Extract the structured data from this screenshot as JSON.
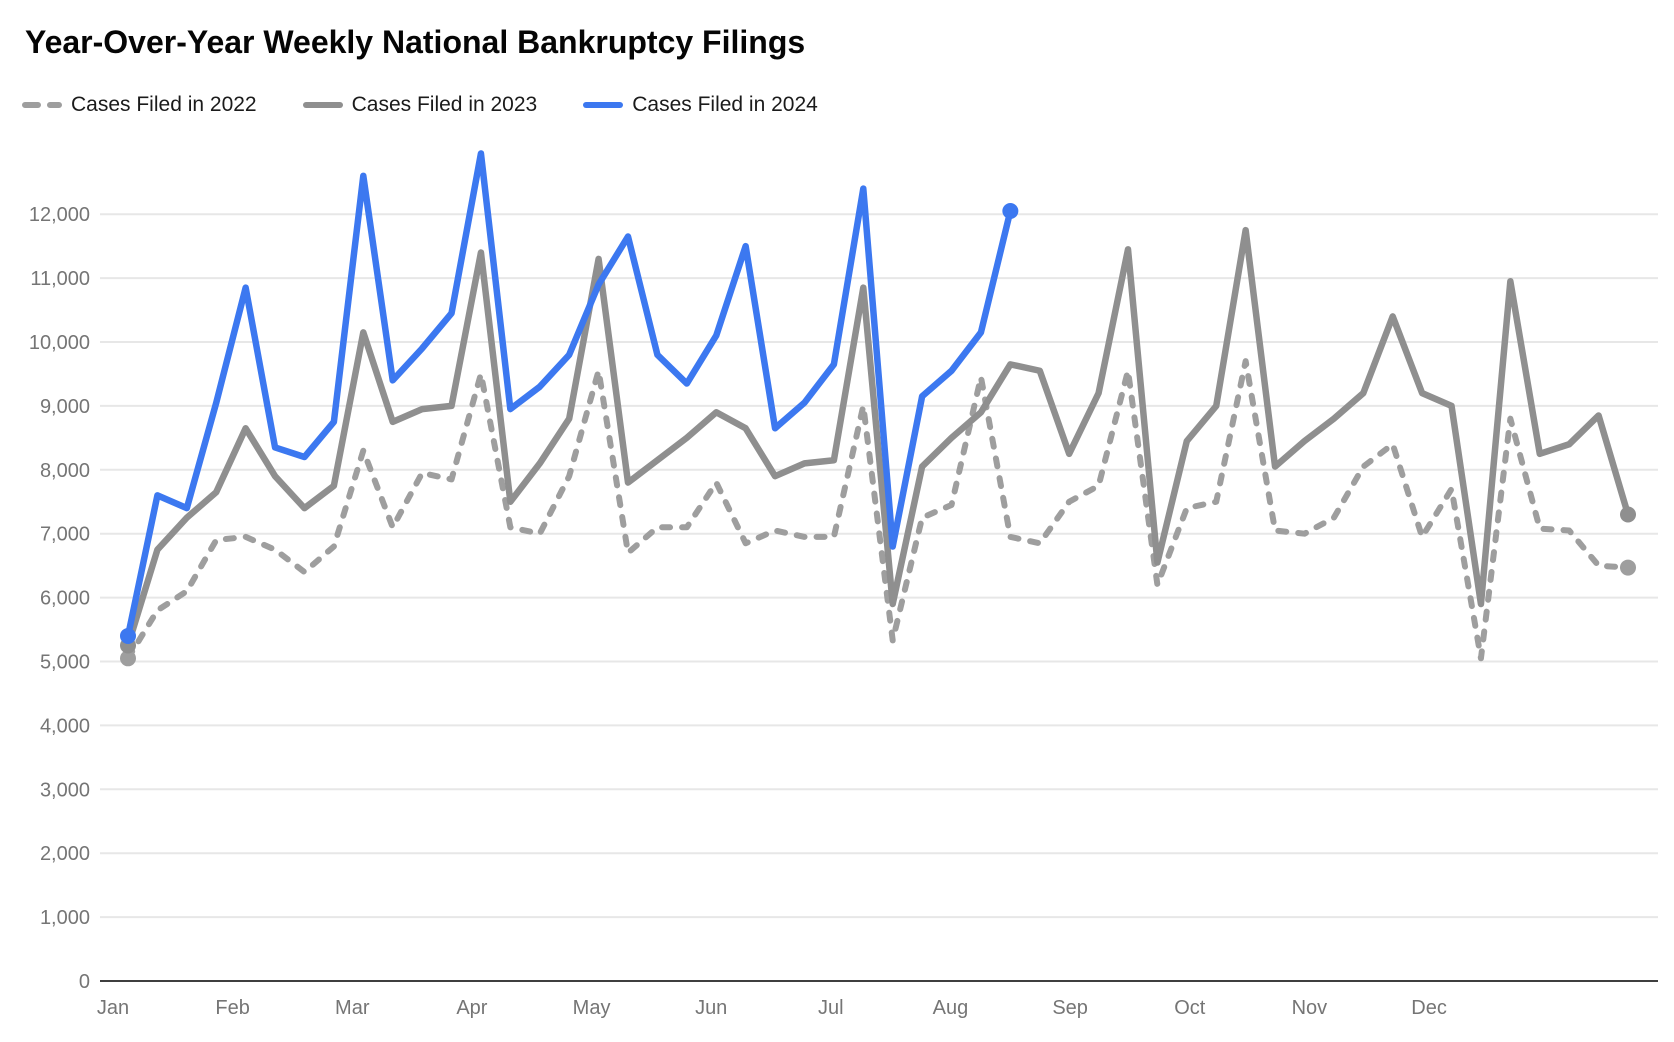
{
  "title": "Year-Over-Year Weekly National Bankruptcy Filings",
  "colors": {
    "series2022": "#9e9e9e",
    "series2023": "#8f8f8f",
    "series2024": "#3c78f0",
    "gridline": "#e7e7e7",
    "axis_baseline": "#3f3f3f",
    "tick_text": "#757575",
    "title_text": "#050505",
    "legend_text": "#1b1b1b"
  },
  "legend": [
    {
      "label": "Cases Filed in 2022",
      "style": "dashed",
      "color": "#9e9e9e"
    },
    {
      "label": "Cases Filed in 2023",
      "style": "solid",
      "color": "#8f8f8f"
    },
    {
      "label": "Cases Filed in 2024",
      "style": "solid",
      "color": "#3c78f0"
    }
  ],
  "chart_data": {
    "type": "line",
    "title": "Year-Over-Year Weekly National Bankruptcy Filings",
    "xlabel": "",
    "ylabel": "",
    "x_unit": "week (52 weekly points per year; 2024 ends at week 31)",
    "grid": true,
    "legend_position": "top-left",
    "ylim": [
      0,
      13100
    ],
    "ytick_labels": [
      "0",
      "1,000",
      "2,000",
      "3,000",
      "4,000",
      "5,000",
      "6,000",
      "7,000",
      "8,000",
      "9,000",
      "10,000",
      "11,000",
      "12,000"
    ],
    "categories_months": [
      "Jan",
      "Feb",
      "Mar",
      "Apr",
      "May",
      "Jun",
      "Jul",
      "Aug",
      "Sep",
      "Oct",
      "Nov",
      "Dec"
    ],
    "series": [
      {
        "name": "Cases Filed in 2022",
        "color": "#9e9e9e",
        "dashed": true,
        "endpoint_dots": true,
        "values": [
          5050,
          5800,
          6100,
          6900,
          6950,
          6750,
          6400,
          6800,
          8300,
          7100,
          7950,
          7850,
          9500,
          7100,
          7000,
          7900,
          9550,
          6700,
          7100,
          7100,
          7800,
          6850,
          7050,
          6950,
          6950,
          9000,
          5330,
          7250,
          7450,
          9450,
          6950,
          6850,
          7500,
          7750,
          9550,
          6200,
          7400,
          7500,
          9700,
          7050,
          7000,
          7250,
          8050,
          8400,
          6950,
          7700,
          5050,
          8800,
          7080,
          7050,
          6500,
          6470
        ]
      },
      {
        "name": "Cases Filed in 2023",
        "color": "#8f8f8f",
        "dashed": false,
        "endpoint_dots": true,
        "values": [
          5250,
          6750,
          7250,
          7650,
          8650,
          7900,
          7400,
          7750,
          10150,
          8750,
          8950,
          9000,
          11400,
          7500,
          8100,
          8800,
          11300,
          7800,
          8150,
          8500,
          8900,
          8650,
          7900,
          8100,
          8150,
          10850,
          5900,
          8050,
          8500,
          8900,
          9650,
          9550,
          8250,
          9200,
          11450,
          6550,
          8450,
          9000,
          11750,
          8050,
          8450,
          8800,
          9200,
          10400,
          9200,
          9000,
          5900,
          10950,
          8250,
          8400,
          8850,
          7300
        ]
      },
      {
        "name": "Cases Filed in 2024",
        "color": "#3c78f0",
        "dashed": false,
        "endpoint_dots": true,
        "values": [
          5400,
          7600,
          7400,
          9050,
          10850,
          8350,
          8200,
          8750,
          12600,
          9400,
          9900,
          10450,
          12950,
          8950,
          9300,
          9800,
          10900,
          11650,
          9800,
          9350,
          10100,
          11500,
          8650,
          9050,
          9650,
          12400,
          6800,
          9150,
          9550,
          10150,
          12050
        ]
      }
    ]
  }
}
